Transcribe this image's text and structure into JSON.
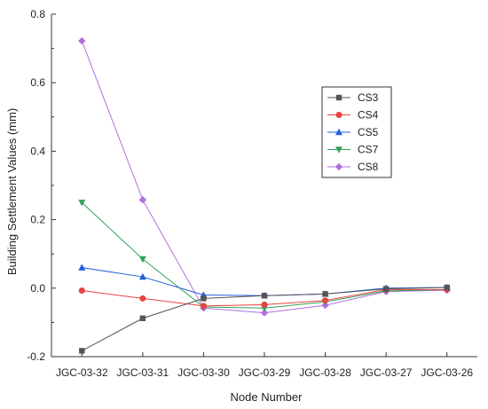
{
  "chart_data": {
    "type": "line",
    "title": "",
    "xlabel": "Node Number",
    "ylabel": "Building Settlement Values (mm)",
    "categories": [
      "JGC-03-32",
      "JGC-03-31",
      "JGC-03-30",
      "JGC-03-29",
      "JGC-03-28",
      "JGC-03-27",
      "JGC-03-26"
    ],
    "ylim": [
      -0.2,
      0.8
    ],
    "yticks": [
      -0.2,
      0.0,
      0.2,
      0.4,
      0.6,
      0.8
    ],
    "ytick_labels": [
      "-0.2",
      "0.0",
      "0.2",
      "0.4",
      "0.6",
      "0.8"
    ],
    "grid": false,
    "legend_position": "top-right",
    "series": [
      {
        "name": "CS3",
        "color": "#555555",
        "marker": "square",
        "values": [
          -0.183,
          -0.088,
          -0.03,
          -0.022,
          -0.017,
          -0.002,
          0.002
        ]
      },
      {
        "name": "CS4",
        "color": "#e8433e",
        "marker": "circle",
        "values": [
          -0.007,
          -0.03,
          -0.052,
          -0.048,
          -0.036,
          -0.004,
          -0.004
        ]
      },
      {
        "name": "CS5",
        "color": "#1f5fd6",
        "marker": "triangle-up",
        "values": [
          0.06,
          0.033,
          -0.02,
          -0.022,
          -0.017,
          0.0,
          0.002
        ]
      },
      {
        "name": "CS7",
        "color": "#2fa35b",
        "marker": "triangle-down",
        "values": [
          0.25,
          0.085,
          -0.055,
          -0.058,
          -0.04,
          -0.008,
          -0.004
        ]
      },
      {
        "name": "CS8",
        "color": "#b070e0",
        "marker": "diamond",
        "values": [
          0.722,
          0.258,
          -0.058,
          -0.072,
          -0.05,
          -0.01,
          -0.006
        ]
      }
    ]
  }
}
